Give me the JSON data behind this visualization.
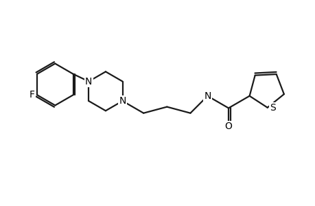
{
  "background_color": "#ffffff",
  "line_color": "#1a1a1a",
  "line_width": 1.6,
  "font_size_atoms": 10,
  "fig_width": 4.6,
  "fig_height": 3.0,
  "dpi": 100,
  "xlim": [
    0,
    9.2
  ],
  "ylim": [
    0,
    6.0
  ]
}
